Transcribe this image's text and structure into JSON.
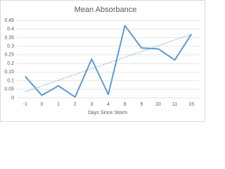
{
  "chart_data": {
    "type": "line",
    "title": "Mean Absorbance",
    "x_label": "Days Since Storm",
    "categories": [
      "-1",
      "0",
      "1",
      "2",
      "3",
      "4",
      "8",
      "9",
      "10",
      "11",
      "15"
    ],
    "series": [
      {
        "color": "#5b9bd5",
        "values": [
          0.125,
          0.015,
          0.07,
          0.005,
          0.225,
          0.02,
          0.42,
          0.29,
          0.285,
          0.22,
          0.37
        ]
      }
    ],
    "trendline": {
      "values": [
        0.035,
        0.37
      ],
      "color": "#5b9bd5",
      "style": "dotted"
    },
    "ylim": [
      0,
      0.45
    ],
    "yticks": [
      0,
      0.05,
      0.1,
      0.15,
      0.2,
      0.25,
      0.3,
      0.35,
      0.4,
      0.45
    ],
    "grid": true
  }
}
